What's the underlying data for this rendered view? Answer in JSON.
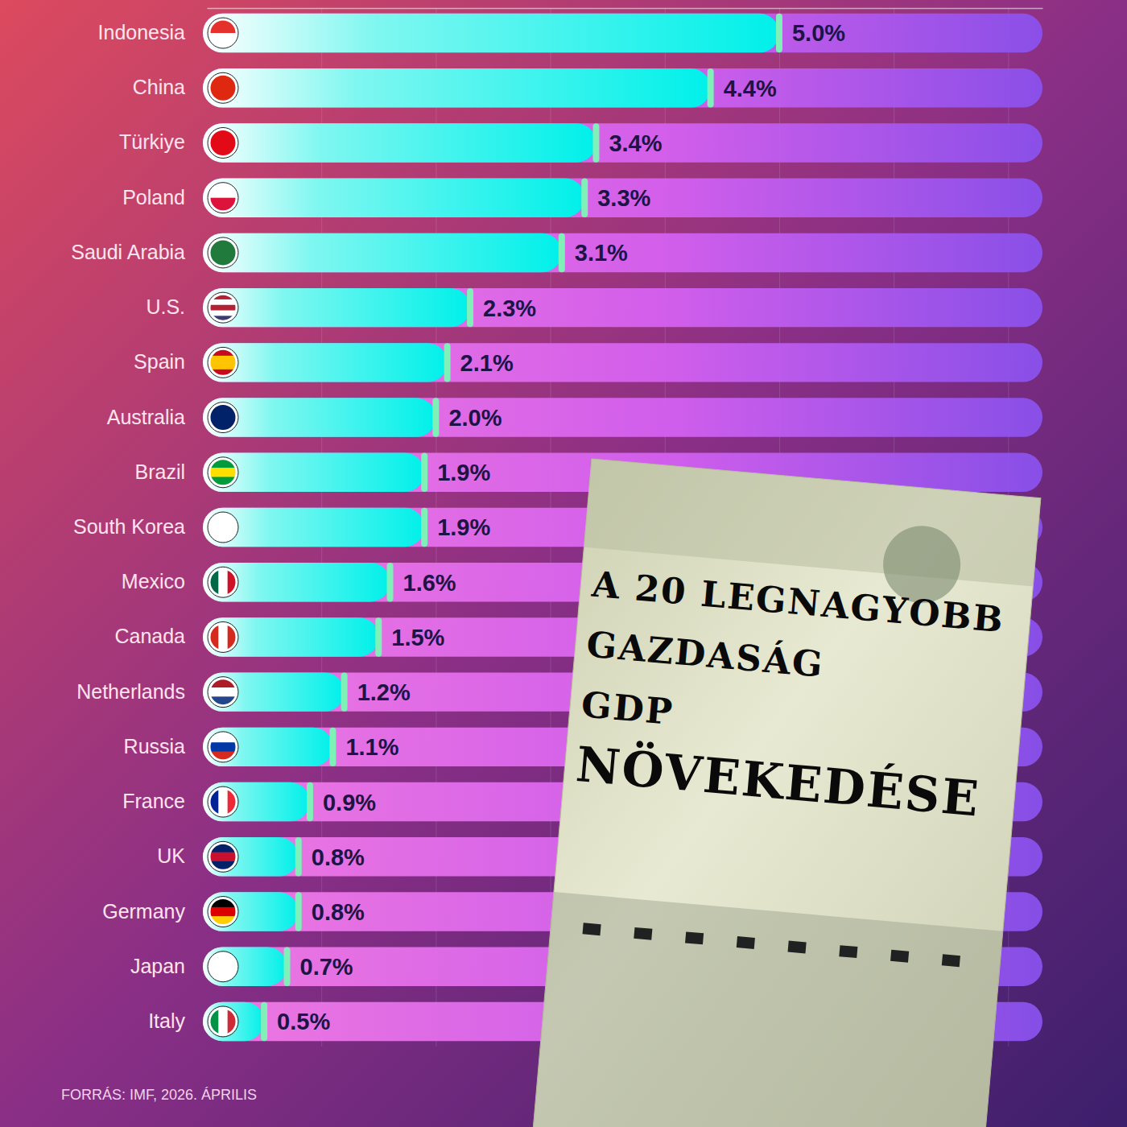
{
  "chart_data": {
    "type": "bar",
    "orientation": "horizontal",
    "title": "A 20 LEGNAGYOBB GAZDASÁG GDP NÖVEKEDÉSE",
    "source": "FORRÁS: IMF, 2026. ÁPRILIS",
    "categories": [
      "Indonesia",
      "China",
      "Türkiye",
      "Poland",
      "Saudi Arabia",
      "U.S.",
      "Spain",
      "Australia",
      "Brazil",
      "South Korea",
      "Mexico",
      "Canada",
      "Netherlands",
      "Russia",
      "France",
      "UK",
      "Germany",
      "Japan",
      "Italy"
    ],
    "values": [
      5.0,
      4.4,
      3.4,
      3.3,
      3.1,
      2.3,
      2.1,
      2.0,
      1.9,
      1.9,
      1.6,
      1.5,
      1.2,
      1.1,
      0.9,
      0.8,
      0.8,
      0.7,
      0.5
    ],
    "value_labels": [
      "5.0%",
      "4.4%",
      "3.4%",
      "3.3%",
      "3.1%",
      "2.3%",
      "2.1%",
      "2.0%",
      "1.9%",
      "1.9%",
      "1.6%",
      "1.5%",
      "1.2%",
      "1.1%",
      "0.9%",
      "0.8%",
      "0.8%",
      "0.7%",
      "0.5%"
    ],
    "color": "#00f0ea",
    "xlim": [
      0,
      7.3
    ],
    "xticks": [
      1,
      2,
      3,
      4,
      5,
      6,
      7
    ],
    "grid": true,
    "data_labels": true,
    "tick_labels": "y"
  }
}
